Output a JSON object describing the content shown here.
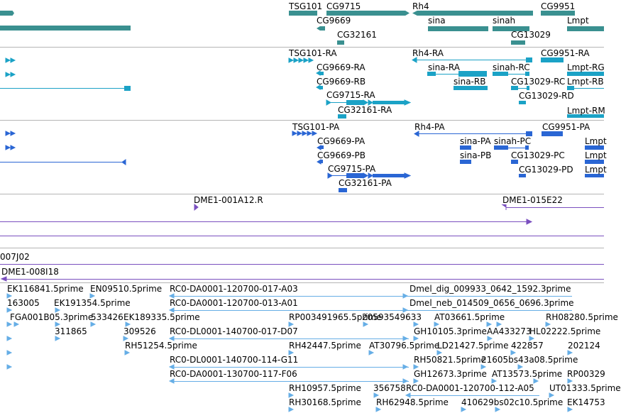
{
  "colors": {
    "gene": "#3a9090",
    "transcript": "#1ba2c6",
    "protein": "#2a66d4",
    "clone_purple": "#7a4fbf",
    "est": "#66aee6",
    "divider": "#b5b5b5"
  },
  "genes": {
    "labels": [
      "TSG101",
      "CG9715",
      "Rh4",
      "CG9951",
      "CG9669",
      "sina",
      "sinah",
      "Lmpt",
      "CG32161",
      "CG13029"
    ]
  },
  "transcripts": {
    "labels": [
      "TSG101-RA",
      "Rh4-RA",
      "CG9951-RA",
      "CG9669-RA",
      "sina-RA",
      "sinah-RC",
      "Lmpt-RG",
      "CG9669-RB",
      "sina-RB",
      "CG13029-RC",
      "Lmpt-RB",
      "CG9715-RA",
      "CG13029-RD",
      "CG32161-RA",
      "Lmpt-RM"
    ]
  },
  "proteins": {
    "labels": [
      "TSG101-PA",
      "Rh4-PA",
      "CG9951-PA",
      "CG9669-PA",
      "sina-PA",
      "sinah-PC",
      "Lmpt",
      "CG9669-PB",
      "sina-PB",
      "CG13029-PC",
      "Lmpt",
      "CG9715-PA",
      "CG13029-PD",
      "Lmpt",
      "CG32161-PA"
    ]
  },
  "clones": {
    "labels": [
      "DME1-001A12.R",
      "DME1-015E22"
    ]
  },
  "bacs": {
    "labels": [
      "007J02",
      "DME1-008I18"
    ]
  },
  "ests": {
    "labels": [
      "EK116841.5prime",
      "EN09510.5prime",
      "RC0-DA0001-120700-017-A03",
      "Dmel_dig_009933_0642_1592.3prime",
      "163005",
      "EK191354.5prime",
      "RC0-DA0001-120700-013-A01",
      "Dmel_neb_014509_0656_0696.3prime",
      "FGA001B05.3prime",
      "533426",
      "EK189335.5prime",
      "RP003491965.5prime",
      "20593549633",
      "AT03661.5prime",
      "RH08280.5prime",
      "311865",
      "309526",
      "RC0-DL0001-140700-017-D07",
      "GH10105.3prime",
      "AA433273",
      "HL02222.5prime",
      "RH51254.5prime",
      "RH42447.5prime",
      "AT30796.5prime",
      "LD21427.5prime",
      "422857",
      "202124",
      "RC0-DL0001-140700-114-G11",
      "RH50821.5prime",
      "21605bs43a08.5prime",
      "RC0-DA0001-130700-117-F06",
      "GH12673.3prime",
      "AT13573.5prime",
      "RP00329",
      "RH10957.5prime",
      "356758",
      "RC0-DA0001-120700-112-A05",
      "UT01333.5prime",
      "RH30168.5prime",
      "RH62948.5prime",
      "410629bs02c10.5prime",
      "EK14753"
    ]
  }
}
